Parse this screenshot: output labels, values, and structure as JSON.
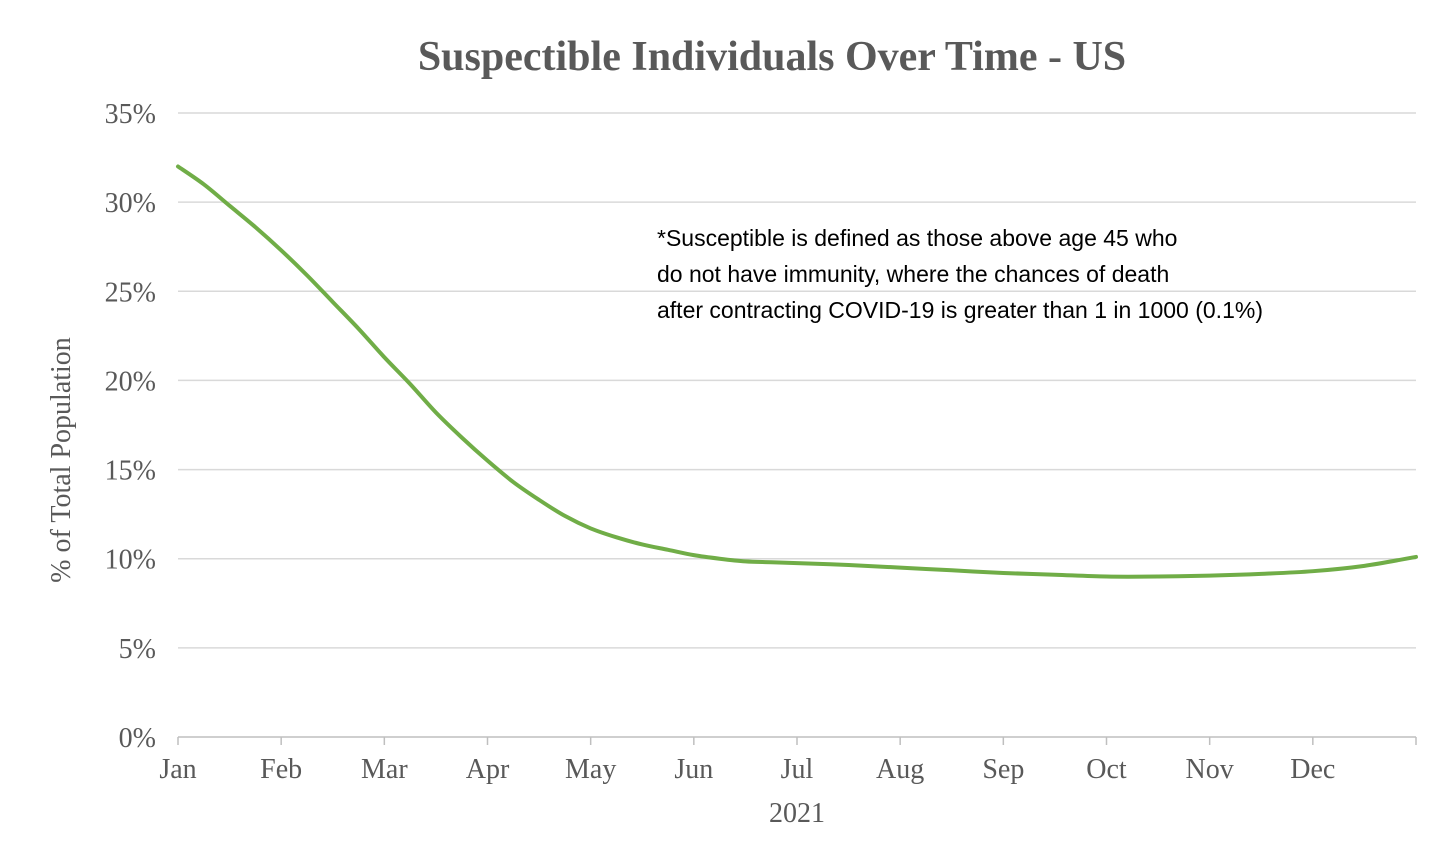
{
  "chart_data": {
    "type": "line",
    "title": "Suspectible Individuals Over Time - US",
    "xlabel": "2021",
    "ylabel": "% of Total Population",
    "ylim": [
      0,
      35
    ],
    "yticks": [
      "0%",
      "5%",
      "10%",
      "15%",
      "20%",
      "25%",
      "30%",
      "35%"
    ],
    "categories": [
      "Jan",
      "Feb",
      "Mar",
      "Apr",
      "May",
      "Jun",
      "Jul",
      "Aug",
      "Sep",
      "Oct",
      "Nov",
      "Dec"
    ],
    "grid": true,
    "series": [
      {
        "name": "Susceptible",
        "color": "#70ad47",
        "x": [
          0,
          0.25,
          0.5,
          0.75,
          1,
          1.25,
          1.5,
          1.75,
          2,
          2.25,
          2.5,
          2.75,
          3,
          3.25,
          3.5,
          3.75,
          4,
          4.25,
          4.5,
          4.75,
          5,
          5.25,
          5.5,
          5.75,
          6,
          6.5,
          7,
          7.5,
          8,
          8.5,
          9,
          9.5,
          10,
          10.5,
          11,
          11.5,
          12
        ],
        "values": [
          32.0,
          31.0,
          29.8,
          28.6,
          27.3,
          25.9,
          24.4,
          22.9,
          21.3,
          19.8,
          18.2,
          16.8,
          15.5,
          14.3,
          13.3,
          12.4,
          11.7,
          11.2,
          10.8,
          10.5,
          10.2,
          10.0,
          9.85,
          9.8,
          9.75,
          9.65,
          9.5,
          9.35,
          9.2,
          9.1,
          9.0,
          9.0,
          9.05,
          9.15,
          9.3,
          9.6,
          10.1
        ]
      }
    ]
  },
  "annotation": {
    "lines": [
      "*Susceptible is defined as those above age 45 who",
      "do not have immunity, where the chances of death",
      "after contracting COVID-19 is greater than 1 in 1000 (0.1%)"
    ]
  },
  "colors": {
    "line": "#70ad47",
    "grid": "#d9d9d9",
    "axis": "#bfbfbf",
    "text": "#595959",
    "annotation": "#000000"
  }
}
